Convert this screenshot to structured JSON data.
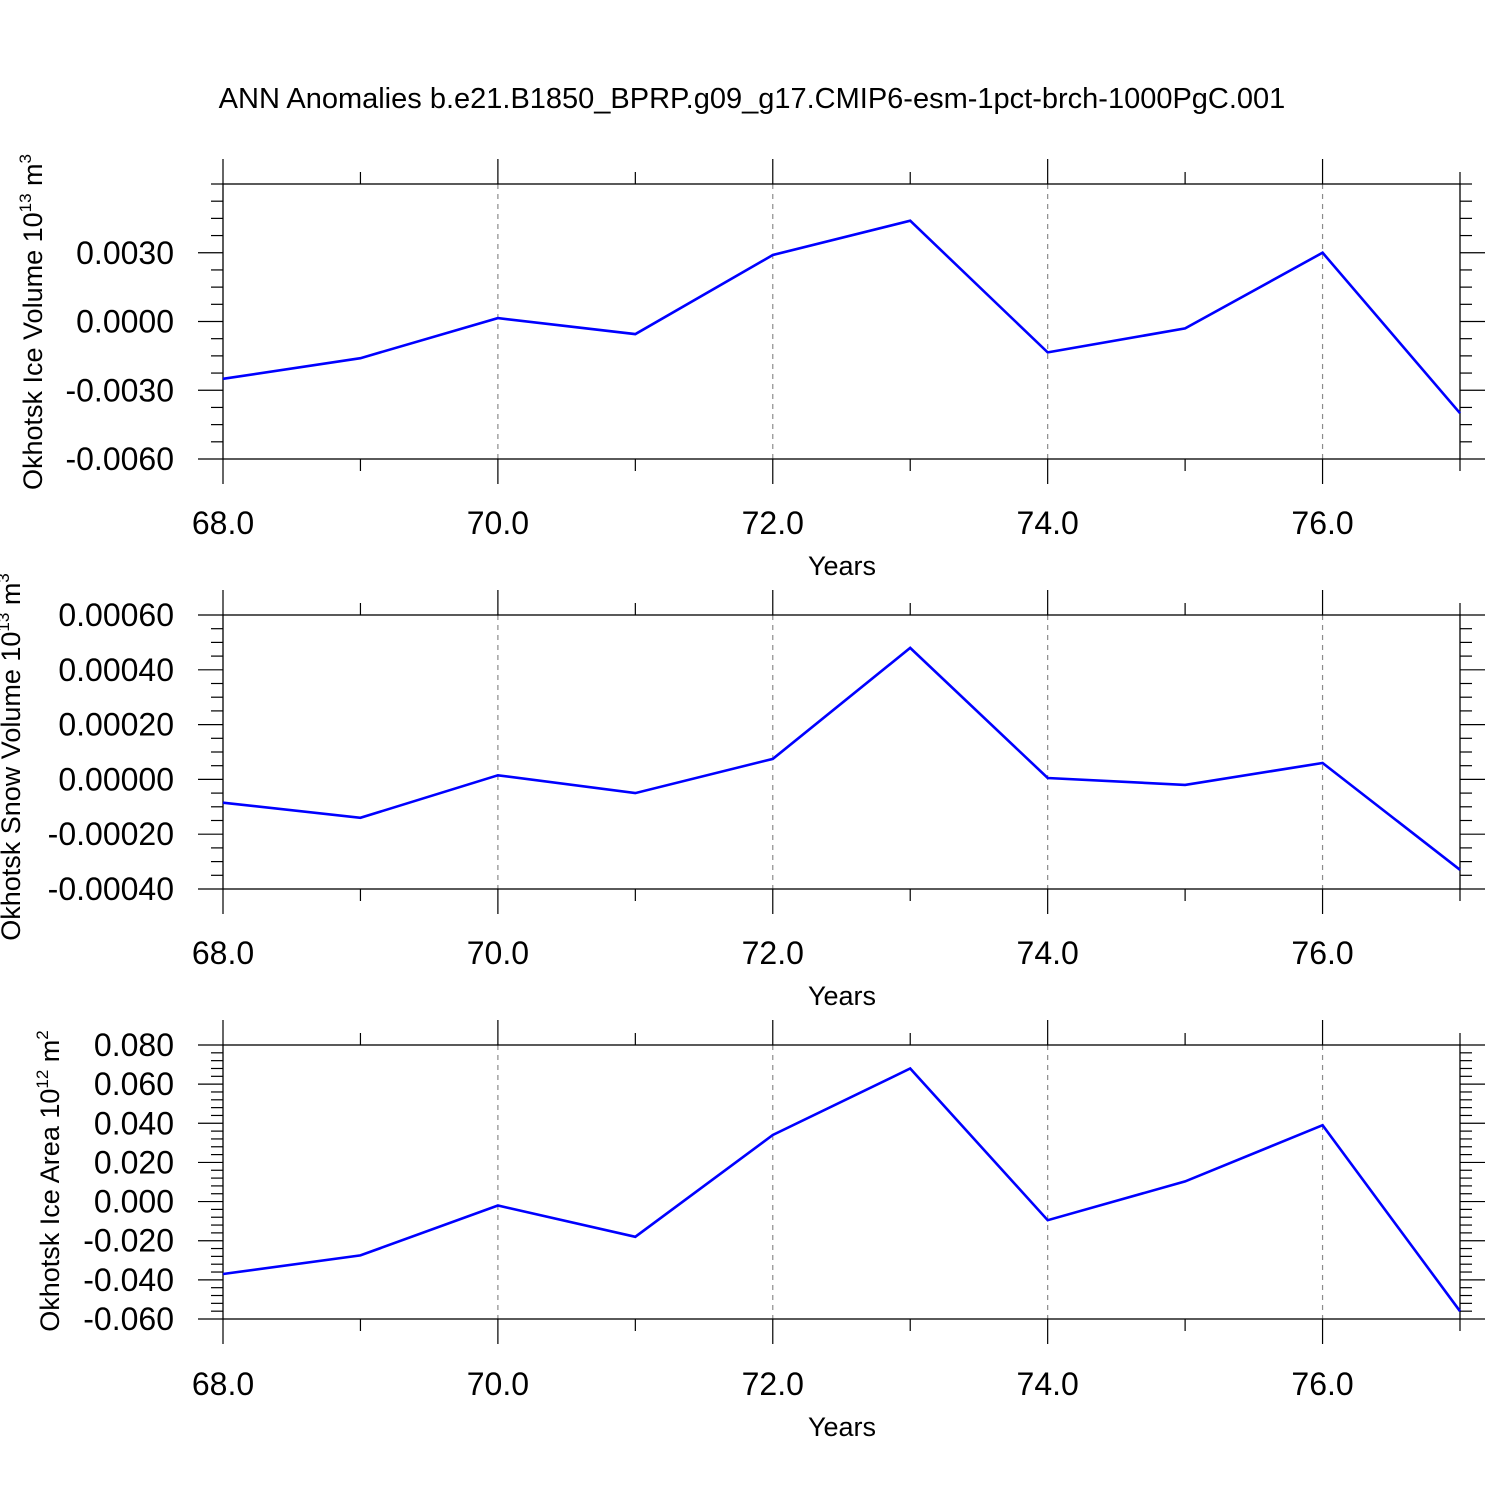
{
  "chart_title": "ANN Anomalies b.e21.B1850_BPRP.g09_g17.CMIP6-esm-1pct-brch-1000PgC.001",
  "chart_data": [
    {
      "type": "line",
      "title": "ANN Anomalies b.e21.B1850_BPRP.g09_g17.CMIP6-esm-1pct-brch-1000PgC.001",
      "xlabel": "Years",
      "ylabel_base": "Okhotsk Ice Volume 10",
      "ylabel_exp": "13",
      "ylabel_unit": " m",
      "ylabel_unit_exp": "3",
      "x": [
        68,
        69,
        70,
        71,
        72,
        73,
        74,
        75,
        76,
        77
      ],
      "xlim": [
        68,
        77
      ],
      "xticks": [
        68,
        70,
        72,
        74,
        76
      ],
      "xtick_labels": [
        "68.0",
        "70.0",
        "72.0",
        "74.0",
        "76.0"
      ],
      "ylim": [
        -0.006,
        0.006
      ],
      "yticks": [
        -0.006,
        -0.003,
        0.0,
        0.003
      ],
      "ytick_labels": [
        "-0.0060",
        "-0.0030",
        "0.0000",
        "0.0030"
      ],
      "series": [
        {
          "values": [
            -0.0025,
            -0.0016,
            0.00015,
            -0.00055,
            0.0029,
            0.0044,
            -0.00135,
            -0.0003,
            0.003,
            -0.004
          ],
          "color": "#0000ff"
        }
      ],
      "grid": "vertical dashed at major x ticks"
    },
    {
      "type": "line",
      "xlabel": "Years",
      "ylabel_base": "Okhotsk Snow Volume 10",
      "ylabel_exp": "13",
      "ylabel_unit": " m",
      "ylabel_unit_exp": "3",
      "x": [
        68,
        69,
        70,
        71,
        72,
        73,
        74,
        75,
        76,
        77
      ],
      "xlim": [
        68,
        77
      ],
      "xticks": [
        68,
        70,
        72,
        74,
        76
      ],
      "xtick_labels": [
        "68.0",
        "70.0",
        "72.0",
        "74.0",
        "76.0"
      ],
      "ylim": [
        -0.0004,
        0.0006
      ],
      "yticks": [
        -0.0004,
        -0.0002,
        0.0,
        0.0002,
        0.0004,
        0.0006
      ],
      "ytick_labels": [
        "-0.00040",
        "-0.00020",
        "0.00000",
        "0.00020",
        "0.00040",
        "0.00060"
      ],
      "series": [
        {
          "values": [
            -8.5e-05,
            -0.00014,
            1.5e-05,
            -5e-05,
            7.5e-05,
            0.00048,
            5e-06,
            -2e-05,
            6e-05,
            -0.00033
          ],
          "color": "#0000ff"
        }
      ],
      "grid": "vertical dashed at major x ticks"
    },
    {
      "type": "line",
      "xlabel": "Years",
      "ylabel_base": "Okhotsk Ice Area 10",
      "ylabel_exp": "12",
      "ylabel_unit": " m",
      "ylabel_unit_exp": "2",
      "x": [
        68,
        69,
        70,
        71,
        72,
        73,
        74,
        75,
        76,
        77
      ],
      "xlim": [
        68,
        77
      ],
      "xticks": [
        68,
        70,
        72,
        74,
        76
      ],
      "xtick_labels": [
        "68.0",
        "70.0",
        "72.0",
        "74.0",
        "76.0"
      ],
      "ylim": [
        -0.06,
        0.08
      ],
      "yticks": [
        -0.06,
        -0.04,
        -0.02,
        0.0,
        0.02,
        0.04,
        0.06,
        0.08
      ],
      "ytick_labels": [
        "-0.060",
        "-0.040",
        "-0.020",
        "0.000",
        "0.020",
        "0.040",
        "0.060",
        "0.080"
      ],
      "series": [
        {
          "values": [
            -0.037,
            -0.0275,
            -0.002,
            -0.018,
            0.034,
            0.068,
            -0.0095,
            0.0103,
            0.039,
            -0.056
          ],
          "color": "#0000ff"
        }
      ],
      "grid": "vertical dashed at major x ticks"
    }
  ]
}
